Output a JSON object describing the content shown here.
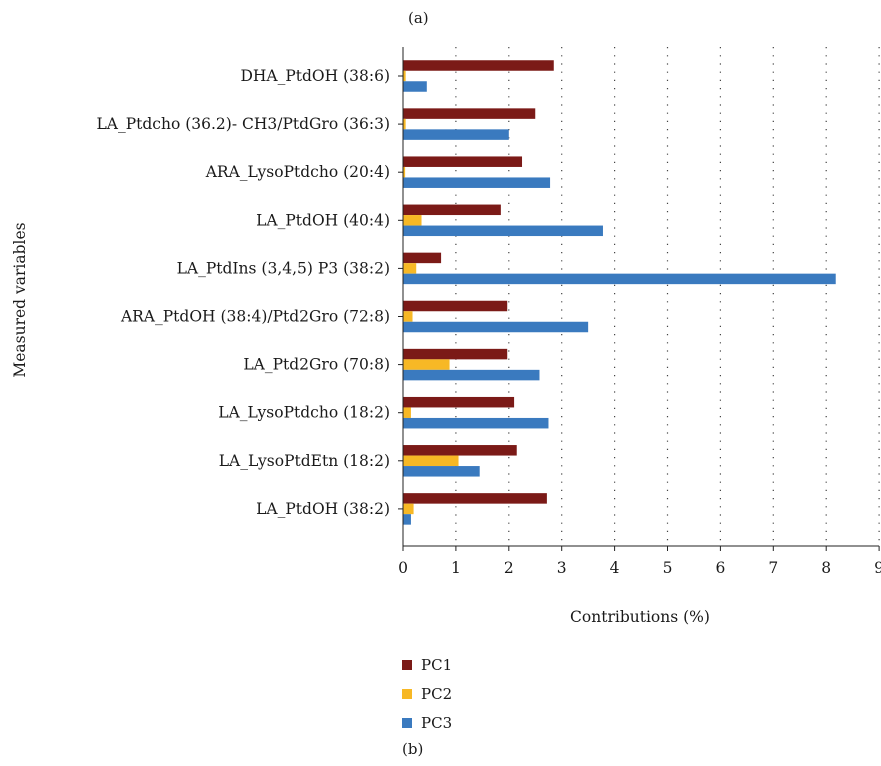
{
  "panel_label_top": "(a)",
  "panel_label_bottom": "(b)",
  "chart_data": {
    "type": "bar",
    "orientation": "horizontal",
    "title": "",
    "xlabel": "Contributions (%)",
    "ylabel": "Measured variables",
    "xlim": [
      0,
      9
    ],
    "xticks": [
      "0",
      "1",
      "2",
      "3",
      "4",
      "5",
      "6",
      "7",
      "8",
      "9"
    ],
    "grid": "vertical dotted",
    "legend_position": "bottom",
    "categories": [
      "DHA_PtdOH (38:6)",
      "LA_Ptdcho (36.2)- CH3/PtdGro (36:3)",
      "ARA_LysoPtdcho (20:4)",
      "LA_PtdOH (40:4)",
      "LA_PtdIns (3,4,5) P3 (38:2)",
      "ARA_PtdOH (38:4)/Ptd2Gro (72:8)",
      "LA_Ptd2Gro (70:8)",
      "LA_LysoPtdcho (18:2)",
      "LA_LysoPtdEtn (18:2)",
      "LA_PtdOH (38:2)"
    ],
    "series": [
      {
        "name": "PC1",
        "color": "#7b1a17",
        "values": [
          2.85,
          2.5,
          2.25,
          1.85,
          0.72,
          1.97,
          1.97,
          2.1,
          2.15,
          2.72
        ]
      },
      {
        "name": "PC2",
        "color": "#f7b825",
        "values": [
          0.05,
          0.05,
          0.04,
          0.35,
          0.25,
          0.18,
          0.88,
          0.15,
          1.05,
          0.2
        ]
      },
      {
        "name": "PC3",
        "color": "#3a7abf",
        "values": [
          0.45,
          2.0,
          2.78,
          3.78,
          8.18,
          3.5,
          2.58,
          2.75,
          1.45,
          0.15
        ]
      }
    ]
  }
}
